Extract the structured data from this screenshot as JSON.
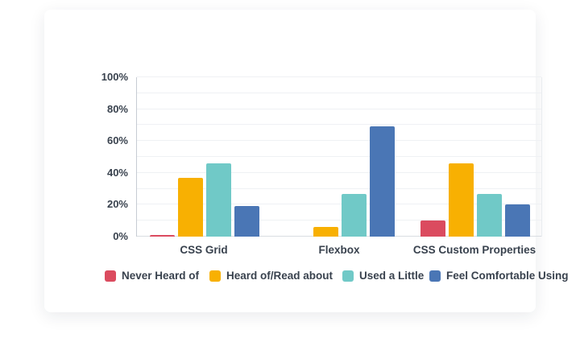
{
  "chart_data": {
    "type": "bar",
    "title": "",
    "categories": [
      "CSS Grid",
      "Flexbox",
      "CSS Custom Properties"
    ],
    "series": [
      {
        "name": "Never Heard of",
        "color": "#DB4B5F",
        "values": [
          1,
          0,
          10
        ]
      },
      {
        "name": "Heard of/Read about",
        "color": "#F8B002",
        "values": [
          37,
          6,
          46
        ]
      },
      {
        "name": "Used a Little",
        "color": "#70C9C7",
        "values": [
          46,
          27,
          27
        ]
      },
      {
        "name": "Feel Comfortable Using",
        "color": "#4A76B5",
        "values": [
          19,
          69,
          20
        ]
      }
    ],
    "xlabel": "",
    "ylabel": "",
    "ylim": [
      0,
      100
    ],
    "unit": "%",
    "y_tick_step": 20,
    "y_tick_labels": [
      "0%",
      "20%",
      "40%",
      "60%",
      "80%",
      "100%"
    ],
    "grid": true,
    "grid_step": 10,
    "legend_position": "bottom"
  },
  "colors": {
    "text": "#39424E",
    "gridline": "#EFF1F4",
    "axis_line": "#C7CCD3",
    "baseline": "#D9DDE2",
    "card_background": "#FFFFFF"
  }
}
